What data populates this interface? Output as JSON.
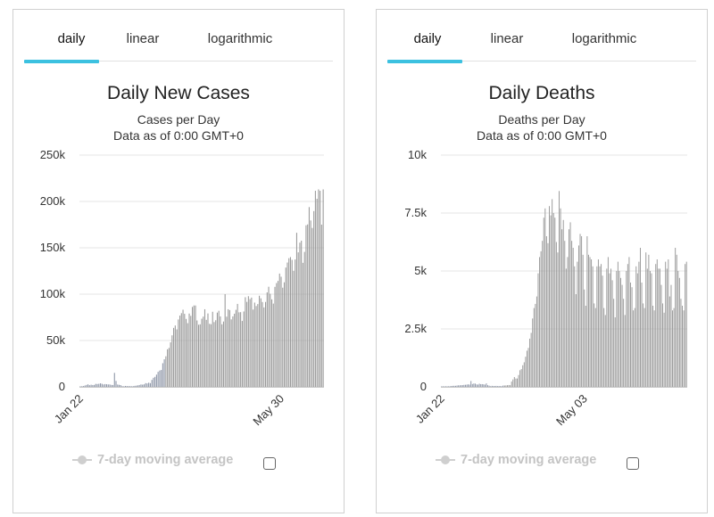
{
  "panels": [
    {
      "tabs": [
        "daily",
        "linear",
        "logarithmic"
      ],
      "active_tab": 0,
      "legend_label": "7-day moving average",
      "chart_data": {
        "type": "bar",
        "title": "Daily New Cases",
        "subtitle": [
          "Cases per Day",
          "Data as of 0:00 GMT+0"
        ],
        "ylim": [
          0,
          250000
        ],
        "y_ticks": [
          {
            "value": 0,
            "label": "0"
          },
          {
            "value": 50000,
            "label": "50k"
          },
          {
            "value": 100000,
            "label": "100k"
          },
          {
            "value": 150000,
            "label": "150k"
          },
          {
            "value": 200000,
            "label": "200k"
          },
          {
            "value": 250000,
            "label": "250k"
          }
        ],
        "x_ticks": [
          {
            "index": 0,
            "label": "Jan 22"
          },
          {
            "index": 129,
            "label": "May 30"
          }
        ],
        "start_date": "Jan 22",
        "values": [
          580,
          600,
          900,
          1400,
          2100,
          2700,
          1800,
          2300,
          2000,
          2100,
          3200,
          3100,
          3300,
          3800,
          3300,
          2600,
          3000,
          2800,
          2600,
          2600,
          2100,
          2000,
          15100,
          6400,
          2500,
          2200,
          1900,
          800,
          600,
          1000,
          900,
          800,
          800,
          600,
          800,
          1100,
          1300,
          1600,
          2000,
          2600,
          2400,
          2700,
          4000,
          3700,
          4500,
          4000,
          7500,
          9800,
          10800,
          13200,
          16200,
          17600,
          18200,
          25500,
          29700,
          33000,
          40500,
          42000,
          48000,
          55600,
          63600,
          66200,
          62000,
          72700,
          76900,
          79500,
          83200,
          78800,
          73300,
          68700,
          79100,
          76600,
          86200,
          87800,
          87800,
          71600,
          67000,
          67500,
          73500,
          75800,
          83700,
          72300,
          79200,
          68000,
          67600,
          81000,
          69900,
          71900,
          80100,
          82100,
          76000,
          67500,
          70500,
          100000,
          75700,
          83700,
          82800,
          72800,
          76000,
          78900,
          83100,
          89500,
          80400,
          80600,
          71100,
          81300,
          96700,
          91700,
          97800,
          94700,
          96300,
          83400,
          90900,
          87200,
          89300,
          98300,
          95500,
          91500,
          85700,
          91600,
          101900,
          108000,
          100400,
          94400,
          89800,
          107900,
          112000,
          114300,
          122200,
          118800,
          107000,
          112800,
          128700,
          134100,
          138800,
          140000,
          137000,
          125200,
          137400,
          166200,
          145100,
          155600,
          157700,
          133800,
          145600,
          174300,
          175200,
          193900,
          179500,
          171400,
          189600,
          211500,
          202900,
          213000,
          211500,
          175000,
          213000
        ]
      }
    },
    {
      "tabs": [
        "daily",
        "linear",
        "logarithmic"
      ],
      "active_tab": 0,
      "legend_label": "7-day moving average",
      "chart_data": {
        "type": "bar",
        "title": "Daily Deaths",
        "subtitle": [
          "Deaths per Day",
          "Data as of 0:00 GMT+0"
        ],
        "ylim": [
          0,
          10000
        ],
        "y_ticks": [
          {
            "value": 0,
            "label": "0"
          },
          {
            "value": 2500,
            "label": "2.5k"
          },
          {
            "value": 5000,
            "label": "5k"
          },
          {
            "value": 7500,
            "label": "7.5k"
          },
          {
            "value": 10000,
            "label": "10k"
          }
        ],
        "x_ticks": [
          {
            "index": 0,
            "label": "Jan 22"
          },
          {
            "index": 102,
            "label": "May 03"
          }
        ],
        "start_date": "Jan 22",
        "values": [
          17,
          8,
          16,
          14,
          24,
          26,
          26,
          38,
          43,
          46,
          45,
          57,
          64,
          66,
          73,
          73,
          86,
          89,
          97,
          108,
          97,
          254,
          121,
          143,
          142,
          106,
          98,
          136,
          115,
          118,
          109,
          97,
          150,
          71,
          52,
          29,
          44,
          37,
          35,
          42,
          31,
          38,
          31,
          30,
          58,
          57,
          63,
          69,
          80,
          71,
          228,
          321,
          424,
          360,
          360,
          511,
          718,
          766,
          933,
          1060,
          1300,
          1560,
          1680,
          2080,
          2330,
          2950,
          3400,
          3580,
          3900,
          4900,
          5600,
          5850,
          6300,
          7300,
          7700,
          6500,
          6200,
          7800,
          7400,
          8100,
          7500,
          7300,
          6250,
          5800,
          8450,
          7700,
          6800,
          7200,
          6300,
          5100,
          5600,
          6800,
          7100,
          6300,
          6000,
          5200,
          4000,
          5400,
          6100,
          6600,
          6500,
          5700,
          4200,
          3500,
          6500,
          5700,
          5600,
          5500,
          5200,
          3600,
          3400,
          5200,
          5500,
          5200,
          5300,
          4800,
          3400,
          3100,
          5100,
          5600,
          4900,
          5100,
          4600,
          3800,
          3000,
          5000,
          5400,
          5000,
          4700,
          4400,
          3800,
          3100,
          5000,
          5300,
          5600,
          4500,
          4300,
          3300,
          3400,
          5200,
          4900,
          5400,
          6000,
          4500,
          3600,
          3400,
          5800,
          5100,
          5700,
          5000,
          4900,
          3500,
          3300,
          5300,
          5500,
          5100,
          5100,
          4400,
          3600,
          3200,
          5400,
          5100,
          5500,
          3900,
          4400,
          3300,
          3400,
          6000,
          5700,
          5000,
          4700,
          3800,
          3500,
          3300,
          5300,
          5400
        ]
      }
    }
  ]
}
